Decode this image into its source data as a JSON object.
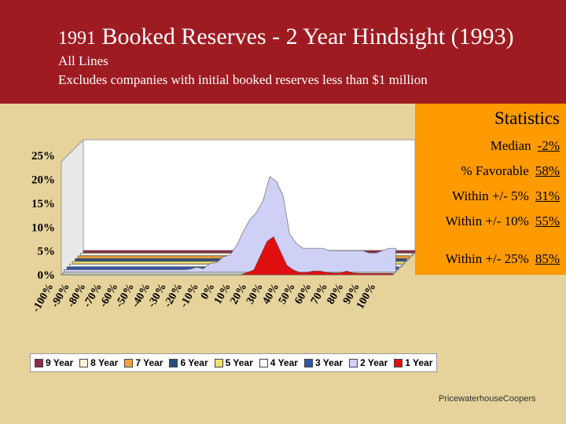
{
  "header": {
    "title_prefix": "1991",
    "title_main": "Booked Reserves - 2 Year Hindsight (1993)",
    "subtitle1": "All Lines",
    "subtitle2": "Excludes companies with initial booked reserves less than $1 million"
  },
  "stats": {
    "title": "Statistics",
    "rows": [
      {
        "label": "Median",
        "value": "-2%"
      },
      {
        "label": "% Favorable",
        "value": "58%"
      },
      {
        "label": "Within +/- 5%",
        "value": "31%"
      },
      {
        "label": "Within +/- 10%",
        "value": "55%"
      },
      {
        "label": "Within +/- 25%",
        "value": "85%"
      }
    ]
  },
  "footer": "PricewaterhouseCoopers",
  "chart_data": {
    "type": "area",
    "y_ticks": [
      "25%",
      "20%",
      "15%",
      "10%",
      "5%",
      "0%"
    ],
    "ylim": [
      0,
      0.27
    ],
    "x_tick_labels": [
      "-100%",
      "-90%",
      "-80%",
      "-70%",
      "-60%",
      "-50%",
      "-40%",
      "-30%",
      "-20%",
      "-10%",
      "0%",
      "10%",
      "20%",
      "30%",
      "40%",
      "50%",
      "60%",
      "70%",
      "80%",
      "90%",
      "100%"
    ],
    "series": [
      {
        "name": "9 Year",
        "color": "#8e2a4a"
      },
      {
        "name": "8 Year",
        "color": "#fff6d5"
      },
      {
        "name": "7 Year",
        "color": "#f4a23a"
      },
      {
        "name": "6 Year",
        "color": "#2a4d7a"
      },
      {
        "name": "5 Year",
        "color": "#f0e070"
      },
      {
        "name": "4 Year",
        "color": "#ffffff"
      },
      {
        "name": "3 Year",
        "color": "#2f56b0"
      },
      {
        "name": "2 Year",
        "color": "#cfd0f5",
        "values": [
          0.005,
          0.005,
          0.005,
          0.005,
          0.005,
          0.005,
          0.005,
          0.005,
          0.005,
          0.005,
          0.005,
          0.005,
          0.005,
          0.005,
          0.005,
          0.005,
          0.005,
          0.005,
          0.005,
          0.006,
          0.01,
          0.007,
          0.018,
          0.02,
          0.032,
          0.036,
          0.055,
          0.085,
          0.11,
          0.125,
          0.15,
          0.2,
          0.19,
          0.16,
          0.08,
          0.06,
          0.05,
          0.05,
          0.05,
          0.05,
          0.045,
          0.045,
          0.045,
          0.045,
          0.045,
          0.045,
          0.04,
          0.04,
          0.045,
          0.05,
          0.05
        ]
      },
      {
        "name": "1 Year",
        "color": "#e01010",
        "values": [
          0,
          0,
          0,
          0,
          0,
          0,
          0,
          0,
          0,
          0,
          0,
          0,
          0,
          0,
          0,
          0,
          0,
          0,
          0,
          0,
          0,
          0,
          0,
          0,
          0,
          0,
          0,
          0,
          0.005,
          0.01,
          0.04,
          0.07,
          0.08,
          0.05,
          0.02,
          0.01,
          0.005,
          0.005,
          0.008,
          0.008,
          0.005,
          0.004,
          0.004,
          0.008,
          0.004,
          0.003,
          0.003,
          0.003,
          0.003,
          0.003,
          0.003
        ]
      }
    ]
  }
}
